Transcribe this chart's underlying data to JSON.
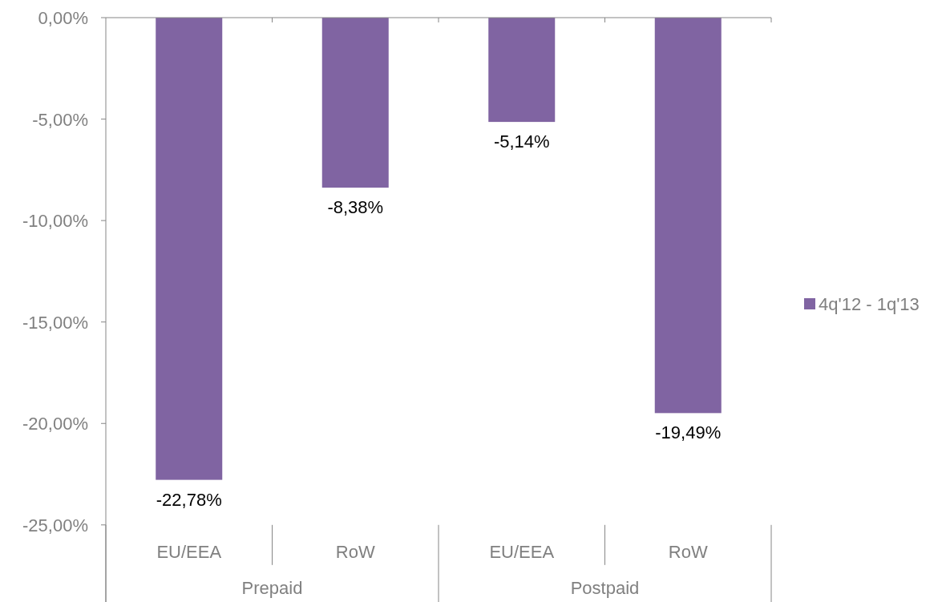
{
  "chart_data": {
    "type": "bar",
    "categories": [
      "EU/EEA",
      "RoW",
      "EU/EEA",
      "RoW"
    ],
    "series": [
      {
        "name": "4q'12 - 1q'13",
        "color": "#8064a2",
        "values": [
          -22.78,
          -8.38,
          -5.14,
          -19.49
        ],
        "value_labels": [
          "-22,78%",
          "-8,38%",
          "-5,14%",
          "-19,49%"
        ]
      }
    ],
    "ylim": [
      -28.8,
      0
    ],
    "yticks": [
      {
        "value": 0,
        "label": "0,00%"
      },
      {
        "value": -5,
        "label": "-5,00%"
      },
      {
        "value": -10,
        "label": "-10,00%"
      },
      {
        "value": -15,
        "label": "-15,00%"
      },
      {
        "value": -20,
        "label": "-20,00%"
      },
      {
        "value": -25,
        "label": "-25,00%"
      }
    ],
    "annotations": [
      "Prepaid",
      "Postpaid"
    ],
    "legend": "right",
    "grid": false
  }
}
